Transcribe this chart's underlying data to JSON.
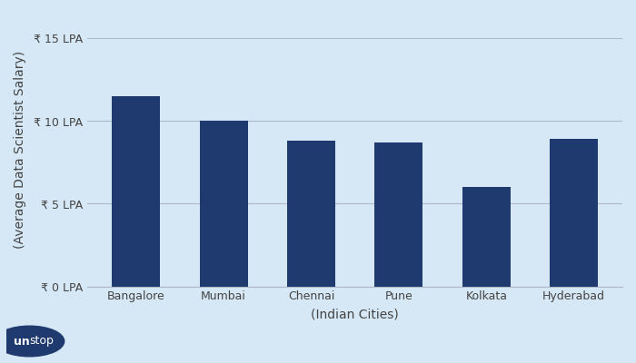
{
  "cities": [
    "Bangalore",
    "Mumbai",
    "Chennai",
    "Pune",
    "Kolkata",
    "Hyderabad"
  ],
  "salaries": [
    11.5,
    10.0,
    8.8,
    8.7,
    6.0,
    8.9
  ],
  "bar_color": "#1F3A6E",
  "background_color": "#D6E8F5",
  "xlabel": "(Indian Cities)",
  "ylabel": "(Average Data Scientist Salary)",
  "yticks": [
    0,
    5,
    10,
    15
  ],
  "ytick_labels": [
    "₹ 0 LPA",
    "₹ 5 LPA",
    "₹ 10 LPA",
    "₹ 15 LPA"
  ],
  "ylim": [
    0,
    16.5
  ],
  "grid_color": "#b0b8c8",
  "axis_label_fontsize": 10,
  "tick_fontsize": 9,
  "bar_width": 0.55,
  "unstop_bg_color": "#1F3A6E",
  "unstop_text_color": "#ffffff"
}
